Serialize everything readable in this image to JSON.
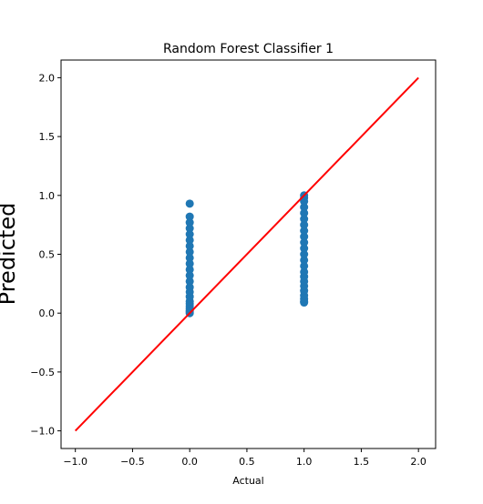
{
  "chart_data": {
    "type": "scatter",
    "title": "Random Forest Classifier 1",
    "xlabel": "Actual",
    "ylabel": "Predicted",
    "xlim": [
      -1.125,
      2.15
    ],
    "ylim": [
      -1.15,
      2.15
    ],
    "x_ticks": [
      -1.0,
      -0.5,
      0.0,
      0.5,
      1.0,
      1.5,
      2.0
    ],
    "x_tick_labels": [
      "−1.0",
      "−0.5",
      "0.0",
      "0.5",
      "1.0",
      "1.5",
      "2.0"
    ],
    "y_ticks": [
      -1.0,
      -0.5,
      0.0,
      0.5,
      1.0,
      1.5,
      2.0
    ],
    "y_tick_labels": [
      "−1.0",
      "−0.5",
      "0.0",
      "0.5",
      "1.0",
      "1.5",
      "2.0"
    ],
    "grid": false,
    "points": {
      "color": "#1f77b4",
      "x": [
        0,
        0,
        0,
        0,
        0,
        0,
        0,
        0,
        0,
        0,
        0,
        0,
        0,
        0,
        0,
        0,
        0,
        0,
        0,
        0,
        0,
        0,
        0,
        1,
        1,
        1,
        1,
        1,
        1,
        1,
        1,
        1,
        1,
        1,
        1,
        1,
        1,
        1,
        1,
        1,
        1,
        1,
        1,
        1,
        1,
        1
      ],
      "y": [
        0.0,
        0.01,
        0.02,
        0.04,
        0.06,
        0.08,
        0.1,
        0.14,
        0.18,
        0.22,
        0.27,
        0.32,
        0.37,
        0.42,
        0.47,
        0.52,
        0.57,
        0.62,
        0.67,
        0.72,
        0.77,
        0.82,
        0.93,
        0.09,
        0.1,
        0.12,
        0.15,
        0.19,
        0.23,
        0.27,
        0.31,
        0.35,
        0.4,
        0.45,
        0.5,
        0.55,
        0.6,
        0.65,
        0.7,
        0.75,
        0.8,
        0.85,
        0.9,
        0.95,
        0.98,
        1.0
      ]
    },
    "reference_line": {
      "x": [
        -1.0,
        2.0
      ],
      "y": [
        -1.0,
        2.0
      ],
      "color": "#ff0000"
    }
  }
}
